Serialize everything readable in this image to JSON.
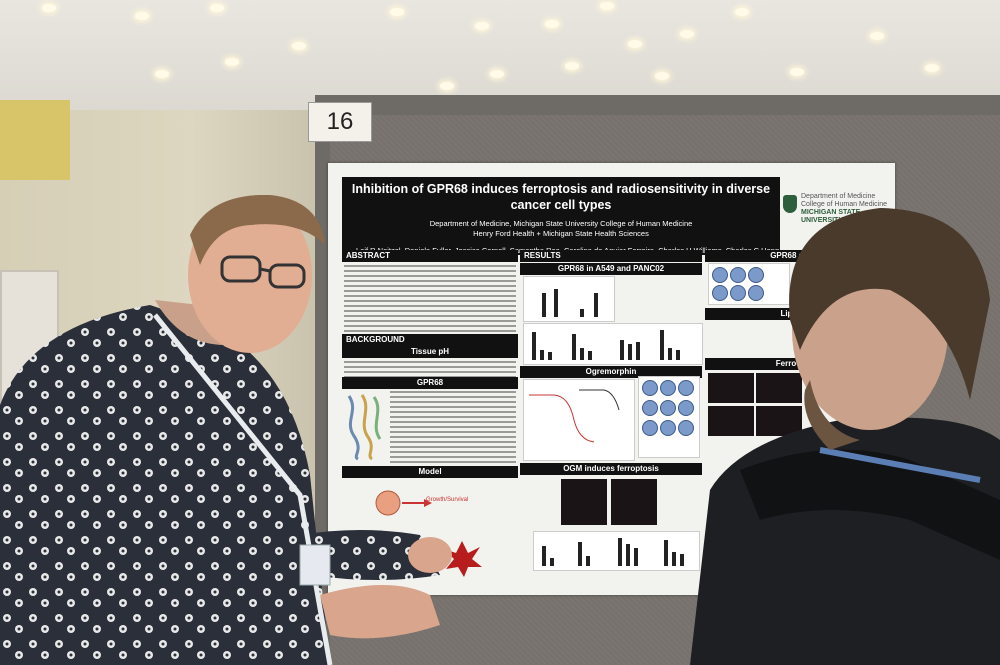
{
  "board_number": "16",
  "poster": {
    "title": "Inhibition of GPR68 induces ferroptosis and radiosensitivity in diverse cancer cell types",
    "affiliation_1": "Department of Medicine, Michigan State University College of Human Medicine",
    "affiliation_2": "Henry Ford Health + Michigan State Health Sciences",
    "authors": "Leif R Neitzel, Daniela Fuller, Jessica Cornell, Samantha Rea, Carolina de Aguiar Ferreira, Charles H Williams, Charles C Hong",
    "logo_line_1": "Department of Medicine",
    "logo_line_2": "College of Human Medicine",
    "logo_line_3": "MICHIGAN STATE UNIVERSITY",
    "sections": {
      "abstract": "ABSTRACT",
      "background": "BACKGROUND",
      "tissue_ph": "Tissue pH",
      "gpr68": "GPR68",
      "model": "Model",
      "results": "RESULTS",
      "gpr68_cells": "GPR68 in A549 and PANC02",
      "ogremorphin": "Ogremorphin",
      "ogm_ferroptosis": "OGM induces ferroptosis",
      "gpr68_radio": "GPR68 and radi",
      "lipid_pero": "Lipid Pero",
      "ferroorange": "FerroOrange"
    },
    "model_label": "Growth/Survival"
  },
  "colors": {
    "poster_header": "#111111",
    "msu_green": "#2e5e3b",
    "backboard": "#6e6a66"
  }
}
